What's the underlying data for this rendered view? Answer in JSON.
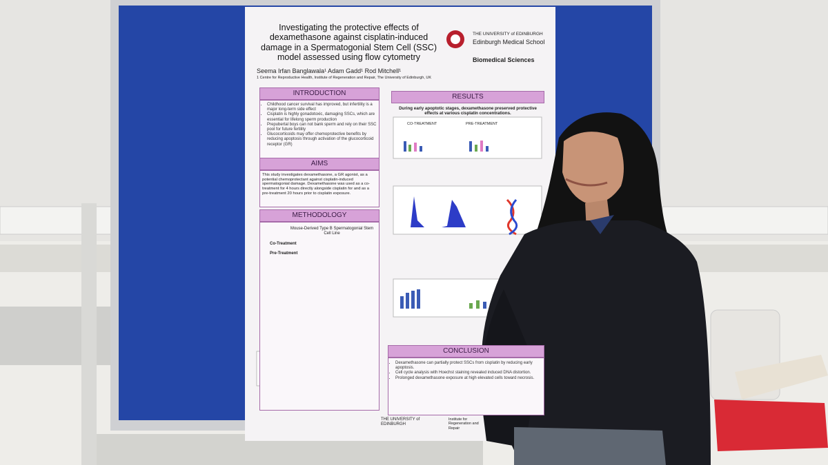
{
  "poster": {
    "title": "Investigating the protective effects of dexamethasone against cisplatin-induced damage in a Spermatogonial Stem Cell (SSC) model assessed using flow cytometry",
    "logo": {
      "university": "THE UNIVERSITY of EDINBURGH",
      "school": "Edinburgh Medical School",
      "department": "Biomedical Sciences"
    },
    "authors": "Seema Irfan Banglawala¹ Adam Gadd¹ Rod Mitchell¹",
    "affiliation": "1 Centre for Reproductive Health, Institute of Regeneration and Repair, The University of Edinburgh, UK",
    "introduction": {
      "heading": "INTRODUCTION",
      "bullets": [
        "Childhood cancer survival has improved, but infertility is a major long-term side effect",
        "Cisplatin is highly gonadotoxic, damaging SSCs, which are essential for lifelong sperm production",
        "Prepubertal boys can not bank sperm and rely on their SSC pool for future fertility",
        "Glucocorticoids may offer chemoprotective benefits by reducing apoptosis through activation of the glucocorticoid receptor (GR)"
      ]
    },
    "aims": {
      "heading": "AIMS",
      "text": "This study investigates dexamethasone, a GR agonist, as a potential chemoprotectant against cisplatin-induced spermatogonial damage. Dexamethasone was used as a co-treatment for 4 hours directly alongside cisplatin for and as a pre-treatment 20 hours prior to cisplatin exposure."
    },
    "methodology": {
      "heading": "METHODOLOGY",
      "model": "Mouse-Derived Type B Spermatogonial Stem Cell Line",
      "co_treatment": "Co-Treatment",
      "pre_treatment": "Pre-Treatment"
    },
    "results": {
      "heading": "RESULTS",
      "summary": "During early apoptotic stages, dexamethasone preserved protective effects at various cisplatin concentrations.",
      "panel_a": "CO-TREATMENT",
      "panel_b": "PRE-TREATMENT"
    },
    "conclusion": {
      "heading": "CONCLUSION",
      "bullets": [
        "Dexamethasone can partially protect SSCs from cisplatin by reducing early apoptosis.",
        "Cell cycle analysis with Hoechst staining revealed induced DNA distortion.",
        "Prolonged dexamethasone exposure at high elevated cells toward necrosis."
      ]
    },
    "footer": {
      "university": "THE UNIVERSITY of EDINBURGH",
      "institute": "Institute for Regeneration and Repair"
    }
  }
}
